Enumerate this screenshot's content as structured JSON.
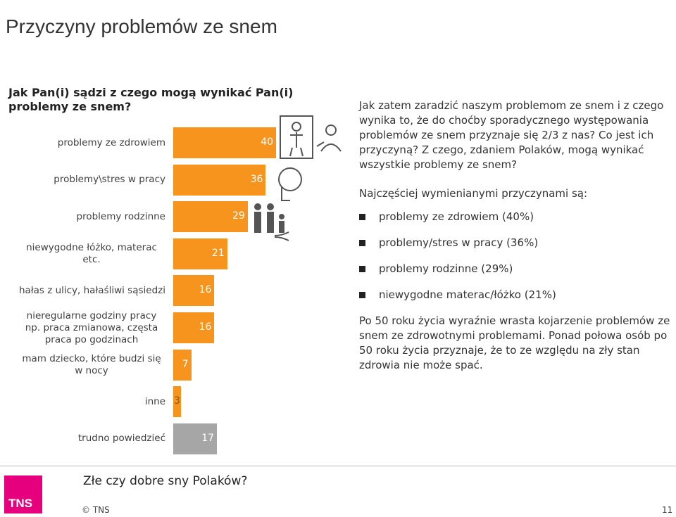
{
  "slide_title": "Przyczyny problemów ze snem",
  "chart_data": {
    "type": "bar",
    "title": "Jak Pan(i) sądzi z czego mogą wynikać Pan(i) problemy ze snem?",
    "categories": [
      "problemy ze zdrowiem",
      "problemy\\stres w pracy",
      "problemy rodzinne",
      "niewygodne łóżko, materac etc.",
      "hałas z ulicy, hałaśliwi sąsiedzi",
      "nieregularne godziny pracy np. praca zmianowa, częsta praca po godzinach",
      "mam dziecko, które budzi się w nocy",
      "inne",
      "trudno powiedzieć"
    ],
    "values": [
      40,
      36,
      29,
      21,
      16,
      16,
      7,
      3,
      17
    ],
    "colors": [
      "#f7941d",
      "#f7941d",
      "#f7941d",
      "#f7941d",
      "#f7941d",
      "#f7941d",
      "#f7941d",
      "#f7941d",
      "#a6a6a6"
    ]
  },
  "text": {
    "intro": "Jak zatem zaradzić naszym problemom ze snem i z czego wynika to, że do choćby sporadycznego występowania problemów ze snem przyznaje się 2/3 z nas? Co jest ich przyczyną? Z czego, zdaniem Polaków, mogą wynikać wszystkie problemy ze snem?",
    "lead": "Najczęściej wymienianymi przyczynami są:",
    "bullets": [
      "problemy ze zdrowiem (40%)",
      "problemy/stres w pracy (36%)",
      "problemy rodzinne (29%)",
      "niewygodne materac/łóżko (21%)"
    ],
    "closing": "Po 50 roku życia wyraźnie wrasta kojarzenie problemów ze snem ze zdrowotnymi problemami. Ponad połowa osób po 50 roku życia przyznaje, że to ze względu na zły stan zdrowia nie może spać."
  },
  "footer": {
    "logo": "TNS",
    "report": "Złe czy dobre sny Polaków?",
    "copyright": "© TNS",
    "page": "11"
  }
}
